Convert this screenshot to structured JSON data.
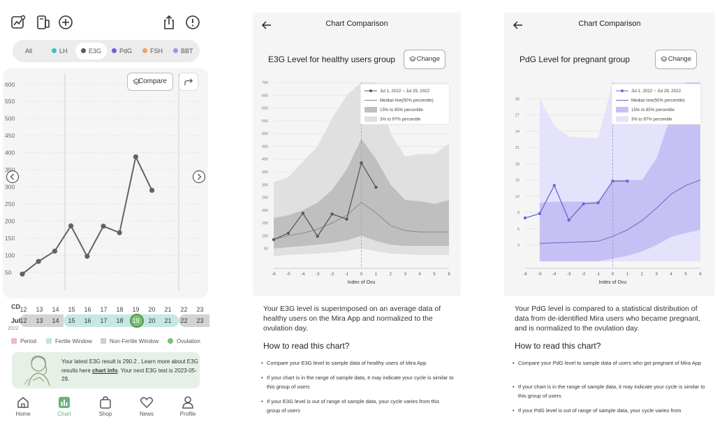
{
  "screen1": {
    "filters": [
      {
        "label": "All",
        "color": ""
      },
      {
        "label": "LH",
        "color": "#2ec7c0"
      },
      {
        "label": "E3G",
        "color": "#555d66"
      },
      {
        "label": "PdG",
        "color": "#6c63d9"
      },
      {
        "label": "FSH",
        "color": "#f2a05a"
      },
      {
        "label": "BBT",
        "color": "#b58be0"
      }
    ],
    "compare_label": "Compare",
    "chart_data": {
      "type": "line",
      "x": [
        12,
        13,
        14,
        15,
        16,
        17,
        18,
        19,
        20
      ],
      "values": [
        45,
        82,
        112,
        186,
        97,
        185,
        166,
        388,
        290
      ],
      "yticks": [
        50,
        100,
        150,
        200,
        250,
        300,
        350,
        400,
        450,
        500,
        550,
        600
      ],
      "ylim": [
        25,
        620
      ],
      "color": "#5f6369"
    },
    "cd_label": "CD",
    "cd_days": [
      "12",
      "13",
      "14",
      "15",
      "16",
      "17",
      "18",
      "19",
      "20",
      "21",
      "22",
      "23"
    ],
    "month_label": "Jul",
    "year_label": "2022",
    "legend": [
      "Period",
      "Fertile Window",
      "Non-Fertile Window",
      "Ovulation"
    ],
    "legend_colors": [
      "#f2b8c6",
      "#bfe6e3",
      "#cfcfcf",
      "#7dbf74"
    ],
    "info_pre": "Your latest E3G result is 290.2 . Learn more about E3G results here ",
    "info_link": "chart info",
    "info_post": ". Your next E3G test is 2023-05-29.",
    "nav": [
      "Home",
      "Chart",
      "Shop",
      "News",
      "Profile"
    ]
  },
  "screen2": {
    "header_title": "Chart Comparison",
    "chart_title": "E3G Level for healthy users group",
    "change_label": "Change",
    "legend": [
      "Jul 1, 2022 ~ Jul 29, 2022",
      "Median line(50% percentile)",
      "15% to 85% percentile",
      "3% to 97% percentile"
    ],
    "xlabel": "Index of Ovu",
    "chart_data": {
      "type": "area",
      "x": [
        -6,
        -5,
        -4,
        -3,
        -2,
        -1,
        0,
        1,
        2,
        3,
        4,
        5,
        6
      ],
      "yticks": [
        50,
        100,
        150,
        200,
        250,
        300,
        350,
        400,
        450,
        500,
        550,
        600,
        650,
        700
      ],
      "ylim": [
        0,
        700
      ],
      "user_x": [
        -6,
        -5,
        -4,
        -3,
        -2,
        -1,
        0,
        1
      ],
      "user": [
        85,
        110,
        188,
        98,
        185,
        165,
        385,
        290
      ],
      "median": [
        85,
        100,
        110,
        125,
        150,
        180,
        230,
        190,
        140,
        120,
        115,
        115,
        115
      ],
      "p15": [
        50,
        55,
        60,
        65,
        72,
        82,
        100,
        80,
        65,
        60,
        60,
        60,
        60
      ],
      "p85": [
        170,
        180,
        200,
        230,
        280,
        360,
        480,
        400,
        300,
        240,
        235,
        225,
        240
      ],
      "p3": [
        20,
        25,
        28,
        30,
        35,
        40,
        50,
        40,
        30,
        28,
        25,
        25,
        25
      ],
      "p97": [
        310,
        330,
        390,
        450,
        560,
        650,
        700,
        700,
        500,
        410,
        420,
        420,
        460
      ]
    },
    "body": "Your E3G level is superimposed on an average data of healthy users on the Mira App and normalized to the ovulation day.",
    "how_title": "How to read this chart?",
    "bullets": [
      "Compare your E3G level to sample data of healthy users of Mira App",
      "If your chart is in the range of sample data, it may indicate your cycle is similar to this group of users",
      "If your E3G level is out of range of sample data, your cycle varies from this group of users"
    ]
  },
  "screen3": {
    "header_title": "Chart Comparison",
    "chart_title": "PdG Level for pregnant group",
    "change_label": "Change",
    "legend": [
      "Jul 1, 2022 ~ Jul 29, 2022",
      "Median line(50% percentile)",
      "15% to 85% percentile",
      "3% to 97% percentile"
    ],
    "xlabel": "Index of Ovu",
    "chart_data": {
      "type": "area",
      "x": [
        -6,
        -5,
        -4,
        -3,
        -2,
        -1,
        0,
        1,
        2,
        3,
        4,
        5,
        6
      ],
      "yticks": [
        3,
        6,
        9,
        12,
        15,
        18,
        21,
        24,
        27,
        30
      ],
      "ylim": [
        0,
        33
      ],
      "user_x": [
        -6,
        -5,
        -4,
        -3,
        -2,
        -1,
        0,
        1
      ],
      "user": [
        8,
        8.8,
        14,
        7.6,
        10.6,
        10.8,
        14.8,
        14.8
      ],
      "median": [
        null,
        3.3,
        3.4,
        3.5,
        3.6,
        3.7,
        4.6,
        5.8,
        7.5,
        9.8,
        12.4,
        14,
        15
      ],
      "p15": [
        null,
        0,
        0,
        0,
        0,
        0,
        0.5,
        1,
        1.8,
        3,
        4.5,
        5.2,
        5.8
      ],
      "p85": [
        null,
        10.8,
        11,
        11,
        11,
        11,
        15,
        15,
        15,
        19,
        27,
        33,
        33
      ],
      "p3": [
        null,
        0,
        0,
        0,
        0,
        0,
        0,
        0,
        0,
        0,
        0,
        0,
        0
      ],
      "p97": [
        null,
        30,
        25,
        23,
        22.8,
        22.7,
        33,
        33,
        33,
        33,
        33,
        33,
        33
      ]
    },
    "body": "Your PdG level is compared to a statistical distribution of data from de-identified Mira users who became pregnant, and is normalized to the ovulation day.",
    "how_title": "How to read this chart?",
    "bullets": [
      "Compare your PdG level to sample data of users who got pregnant of Mira App",
      "If your chart is in the range of sample data, it may indicate your cycle is similar to this group of users",
      "If your PdG level is out of range of sample data, your cycle varies from"
    ]
  }
}
